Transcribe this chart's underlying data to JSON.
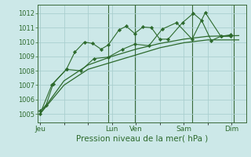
{
  "background_color": "#cce8e8",
  "grid_color": "#aacfcf",
  "line_color": "#2d6a2d",
  "marker_color": "#2d6a2d",
  "xlabel": "Pression niveau de la mer( hPa )",
  "ylim": [
    1004.4,
    1012.6
  ],
  "yticks": [
    1005,
    1006,
    1007,
    1008,
    1009,
    1010,
    1011,
    1012
  ],
  "xtick_labels": [
    "Jeu",
    "",
    "",
    "Lun",
    "Ven",
    "",
    "Sam",
    "",
    "Dim"
  ],
  "xtick_positions": [
    0,
    1,
    2,
    3,
    4,
    5,
    6,
    7,
    8
  ],
  "xlim": [
    -0.1,
    8.6
  ],
  "series": [
    {
      "x": [
        0.0,
        0.25,
        0.55,
        1.1,
        1.45,
        1.85,
        2.2,
        2.55,
        2.85,
        3.3,
        3.6,
        3.95,
        4.3,
        4.65,
        5.0,
        5.35,
        5.95,
        6.4,
        6.75,
        7.15,
        7.55,
        7.95
      ],
      "y": [
        1005.2,
        1005.6,
        1007.1,
        1008.1,
        1009.3,
        1010.0,
        1009.9,
        1009.5,
        1009.8,
        1010.85,
        1011.1,
        1010.6,
        1011.05,
        1011.0,
        1010.2,
        1010.2,
        1011.35,
        1012.0,
        1011.5,
        1010.1,
        1010.4,
        1010.5
      ],
      "style": "line_marker"
    },
    {
      "x": [
        0.0,
        0.5,
        1.1,
        1.7,
        2.25,
        2.85,
        3.45,
        3.95,
        4.55,
        5.1,
        5.7,
        6.35,
        6.9,
        7.55,
        7.95
      ],
      "y": [
        1005.0,
        1007.05,
        1008.1,
        1008.0,
        1008.85,
        1008.95,
        1009.5,
        1009.85,
        1009.75,
        1010.9,
        1011.35,
        1010.2,
        1012.05,
        1010.4,
        1010.4
      ],
      "style": "line_marker"
    },
    {
      "x": [
        0.0,
        1.0,
        2.0,
        3.0,
        4.0,
        5.0,
        6.0,
        7.0,
        8.3
      ],
      "y": [
        1005.0,
        1007.3,
        1008.4,
        1009.0,
        1009.5,
        1009.9,
        1010.2,
        1010.4,
        1010.45
      ],
      "style": "line_only"
    },
    {
      "x": [
        0.0,
        1.0,
        2.0,
        3.0,
        4.0,
        5.0,
        6.0,
        7.0,
        8.3
      ],
      "y": [
        1005.0,
        1007.0,
        1008.1,
        1008.6,
        1009.1,
        1009.6,
        1009.95,
        1010.15,
        1010.15
      ],
      "style": "line_only"
    }
  ],
  "vlines_x": [
    2.85,
    3.95,
    6.35,
    8.1
  ],
  "vline_color": "#3a6a3a",
  "ytick_fontsize": 6,
  "xtick_fontsize": 6.5,
  "xlabel_fontsize": 7.5
}
